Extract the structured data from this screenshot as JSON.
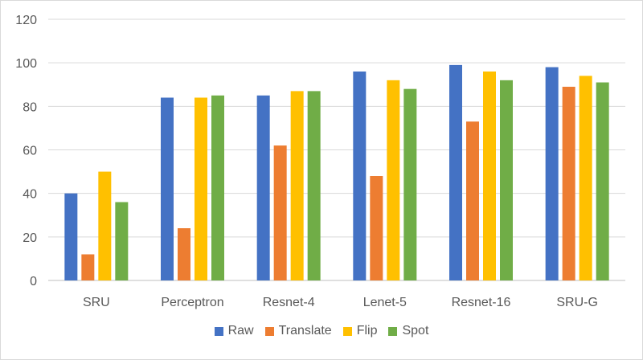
{
  "chart_data": {
    "type": "bar",
    "title": "",
    "xlabel": "",
    "ylabel": "",
    "categories": [
      "SRU",
      "Perceptron",
      "Resnet-4",
      "Lenet-5",
      "Resnet-16",
      "SRU-G"
    ],
    "series": [
      {
        "name": "Raw",
        "color": "#4472C4",
        "values": [
          40,
          84,
          85,
          96,
          99,
          98
        ]
      },
      {
        "name": "Translate",
        "color": "#ED7D31",
        "values": [
          12,
          24,
          62,
          48,
          73,
          89
        ]
      },
      {
        "name": "Flip",
        "color": "#FFC000",
        "values": [
          50,
          84,
          87,
          92,
          96,
          94
        ]
      },
      {
        "name": "Spot",
        "color": "#70AD47",
        "values": [
          36,
          85,
          87,
          88,
          92,
          91
        ]
      }
    ],
    "ylim": [
      0,
      120
    ],
    "yticks": [
      0,
      20,
      40,
      60,
      80,
      100,
      120
    ],
    "grid": true,
    "legend_position": "bottom"
  }
}
